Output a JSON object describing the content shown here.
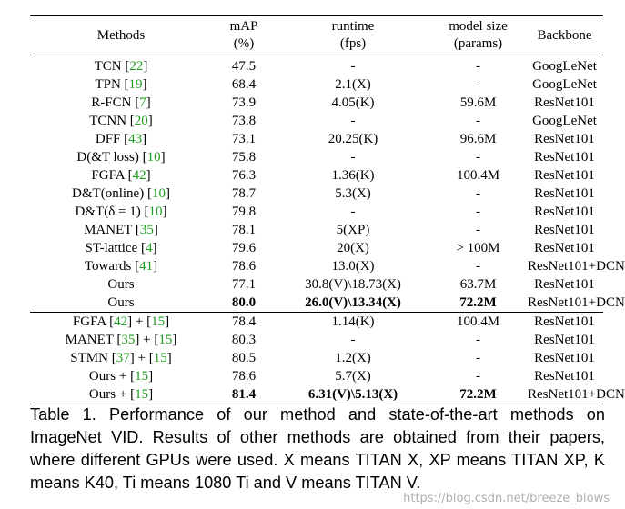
{
  "table": {
    "headers": [
      {
        "l1": "Methods",
        "l2": ""
      },
      {
        "l1": "mAP",
        "l2": "(%)"
      },
      {
        "l1": "runtime",
        "l2": "(fps)"
      },
      {
        "l1": "model size",
        "l2": "(params)"
      },
      {
        "l1": "Backbone",
        "l2": ""
      }
    ],
    "group1": [
      {
        "method": "TCN",
        "cite": "22",
        "map": "47.5",
        "runtime": "-",
        "size": "-",
        "backbone": "GoogLeNet"
      },
      {
        "method": "TPN",
        "cite": "19",
        "map": "68.4",
        "runtime": "2.1(X)",
        "size": "-",
        "backbone": "GoogLeNet"
      },
      {
        "method": "R-FCN",
        "cite": "7",
        "map": "73.9",
        "runtime": "4.05(K)",
        "size": "59.6M",
        "backbone": "ResNet101"
      },
      {
        "method": "TCNN",
        "cite": "20",
        "map": "73.8",
        "runtime": "-",
        "size": "-",
        "backbone": "GoogLeNet"
      },
      {
        "method": "DFF",
        "cite": "43",
        "map": "73.1",
        "runtime": "20.25(K)",
        "size": "96.6M",
        "backbone": "ResNet101"
      },
      {
        "method": "D(&T loss)",
        "cite": "10",
        "map": "75.8",
        "runtime": "-",
        "size": "-",
        "backbone": "ResNet101"
      },
      {
        "method": "FGFA",
        "cite": "42",
        "map": "76.3",
        "runtime": "1.36(K)",
        "size": "100.4M",
        "backbone": "ResNet101"
      },
      {
        "method": "D&T(online)",
        "cite": "10",
        "map": "78.7",
        "runtime": "5.3(X)",
        "size": "-",
        "backbone": "ResNet101"
      },
      {
        "method": "D&T(δ = 1)",
        "cite": "10",
        "map": "79.8",
        "runtime": "-",
        "size": "-",
        "backbone": "ResNet101"
      },
      {
        "method": "MANET",
        "cite": "35",
        "map": "78.1",
        "runtime": "5(XP)",
        "size": "-",
        "backbone": "ResNet101"
      },
      {
        "method": "ST-lattice",
        "cite": "4",
        "map": "79.6",
        "runtime": "20(X)",
        "size": "> 100M",
        "backbone": "ResNet101"
      },
      {
        "method": "Towards",
        "cite": "41",
        "map": "78.6",
        "runtime": "13.0(X)",
        "size": "-",
        "backbone": "ResNet101+DCN"
      },
      {
        "method": "Ours",
        "cite": "",
        "map": "77.1",
        "runtime": "30.8(V)\\18.73(X)",
        "size": "63.7M",
        "backbone": "ResNet101"
      },
      {
        "method": "Ours",
        "cite": "",
        "map": "80.0",
        "runtime": "26.0(V)\\13.34(X)",
        "size": "72.2M",
        "backbone": "ResNet101+DCN",
        "bold": true
      }
    ],
    "group2": [
      {
        "method": "FGFA",
        "cite": "42",
        "plus": "15",
        "map": "78.4",
        "runtime": "1.14(K)",
        "size": "100.4M",
        "backbone": "ResNet101"
      },
      {
        "method": "MANET",
        "cite": "35",
        "plus": "15",
        "map": "80.3",
        "runtime": "-",
        "size": "-",
        "backbone": "ResNet101"
      },
      {
        "method": "STMN",
        "cite": "37",
        "plus": "15",
        "map": "80.5",
        "runtime": "1.2(X)",
        "size": "-",
        "backbone": "ResNet101"
      },
      {
        "method": "Ours",
        "cite": "",
        "plus": "15",
        "map": "78.6",
        "runtime": "5.7(X)",
        "size": "-",
        "backbone": "ResNet101"
      },
      {
        "method": "Ours",
        "cite": "",
        "plus": "15",
        "map": "81.4",
        "runtime": "6.31(V)\\5.13(X)",
        "size": "72.2M",
        "backbone": "ResNet101+DCN",
        "bold": true
      }
    ]
  },
  "caption": "Table 1. Performance of our method and state-of-the-art methods on ImageNet VID. Results of other methods are obtained from their papers, where different GPUs were used. X means TITAN X, XP means TITAN XP, K means K40, Ti means 1080 Ti and V means TITAN V.",
  "watermark": "https://blog.csdn.net/breeze_blows",
  "colors": {
    "citation": "#1e9e1e"
  }
}
